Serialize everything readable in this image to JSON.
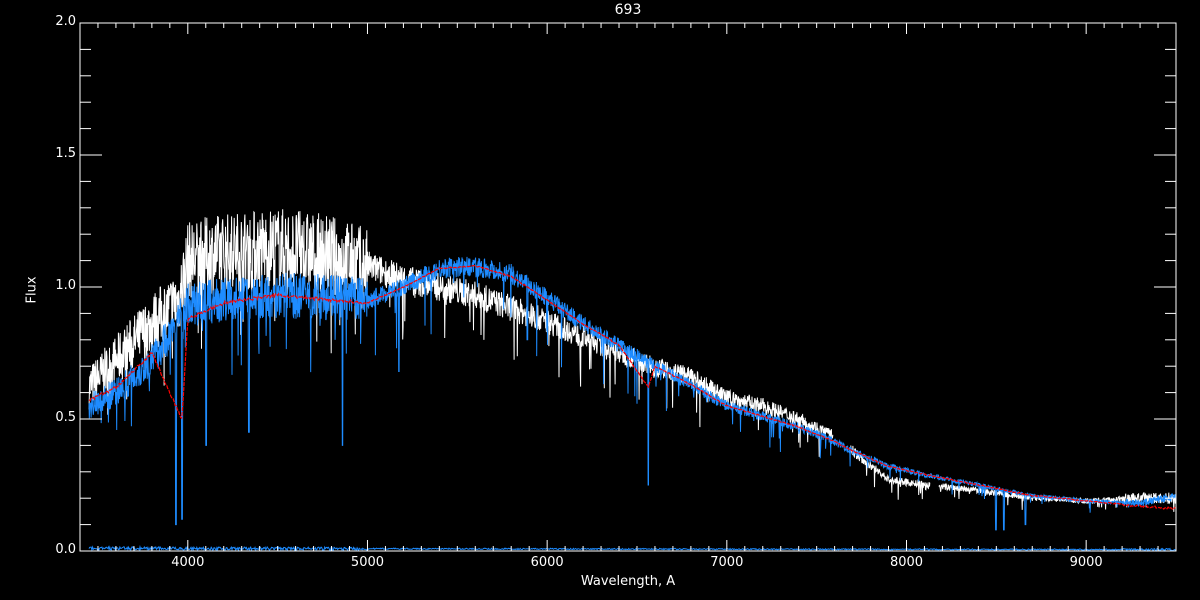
{
  "chart_data": {
    "type": "line",
    "title": "693",
    "xlabel": "Wavelength, A",
    "ylabel": "Flux",
    "xlim": [
      3400,
      9500
    ],
    "ylim": [
      0.0,
      2.0
    ],
    "x_ticks": [
      4000,
      5000,
      6000,
      7000,
      8000,
      9000
    ],
    "x_minor_step": 100,
    "y_ticks": [
      "0.0",
      "0.5",
      "1.0",
      "1.5",
      "2.0"
    ],
    "y_minor_step": 0.1,
    "grid": false,
    "background": "#000000",
    "series": [
      {
        "color": "#ffffff",
        "gaps": [
          [
            7590,
            7690
          ],
          [
            8130,
            8180
          ]
        ],
        "x": [
          3450,
          3600,
          3800,
          3950,
          4000,
          4200,
          4500,
          4800,
          5000,
          5200,
          5400,
          5600,
          5800,
          6000,
          6200,
          6400,
          6600,
          6800,
          7000,
          7200,
          7400,
          7580,
          7700,
          7900,
          8100,
          8400,
          8700,
          9000,
          9300,
          9500
        ],
        "y": [
          0.62,
          0.72,
          0.86,
          0.95,
          1.1,
          1.13,
          1.15,
          1.12,
          1.08,
          1.03,
          1.0,
          0.97,
          0.92,
          0.87,
          0.81,
          0.75,
          0.7,
          0.66,
          0.58,
          0.55,
          0.5,
          0.44,
          0.38,
          0.27,
          0.25,
          0.23,
          0.2,
          0.19,
          0.2,
          0.2
        ]
      },
      {
        "color": "#1e8cff",
        "gaps": [],
        "x": [
          3450,
          3600,
          3800,
          4000,
          4200,
          4500,
          4800,
          5000,
          5200,
          5400,
          5600,
          5800,
          6000,
          6200,
          6400,
          6600,
          6800,
          7000,
          7200,
          7400,
          7580,
          7700,
          7900,
          8100,
          8400,
          8700,
          9000,
          9300,
          9500
        ],
        "y": [
          0.55,
          0.6,
          0.72,
          0.93,
          0.95,
          0.97,
          0.96,
          0.95,
          1.0,
          1.07,
          1.08,
          1.05,
          0.96,
          0.86,
          0.78,
          0.7,
          0.63,
          0.55,
          0.51,
          0.47,
          0.42,
          0.38,
          0.32,
          0.29,
          0.25,
          0.21,
          0.19,
          0.18,
          0.21
        ],
        "absorption_lines": [
          [
            3934,
            0.1
          ],
          [
            3968,
            0.12
          ],
          [
            4102,
            0.4
          ],
          [
            4340,
            0.45
          ],
          [
            4861,
            0.4
          ],
          [
            5175,
            0.68
          ],
          [
            5890,
            0.8
          ],
          [
            6563,
            0.25
          ],
          [
            8498,
            0.08
          ],
          [
            8542,
            0.08
          ],
          [
            8662,
            0.1
          ]
        ]
      },
      {
        "color": "#ff0000",
        "gaps": [],
        "x": [
          3450,
          3600,
          3800,
          3934,
          3968,
          4000,
          4200,
          4500,
          4800,
          5000,
          5200,
          5400,
          5600,
          5800,
          6000,
          6200,
          6400,
          6563,
          6600,
          6800,
          7000,
          7200,
          7400,
          7580,
          7700,
          7900,
          8100,
          8400,
          8700,
          9000,
          9300,
          9500
        ],
        "y": [
          0.57,
          0.62,
          0.75,
          0.55,
          0.5,
          0.88,
          0.94,
          0.97,
          0.95,
          0.94,
          1.0,
          1.07,
          1.08,
          1.04,
          0.95,
          0.86,
          0.78,
          0.62,
          0.7,
          0.63,
          0.55,
          0.51,
          0.47,
          0.42,
          0.38,
          0.32,
          0.29,
          0.25,
          0.21,
          0.19,
          0.17,
          0.16
        ]
      },
      {
        "color": "#1e8cff",
        "gaps": [],
        "x": [
          3450,
          9500
        ],
        "y": [
          0.01,
          0.005
        ]
      }
    ]
  }
}
